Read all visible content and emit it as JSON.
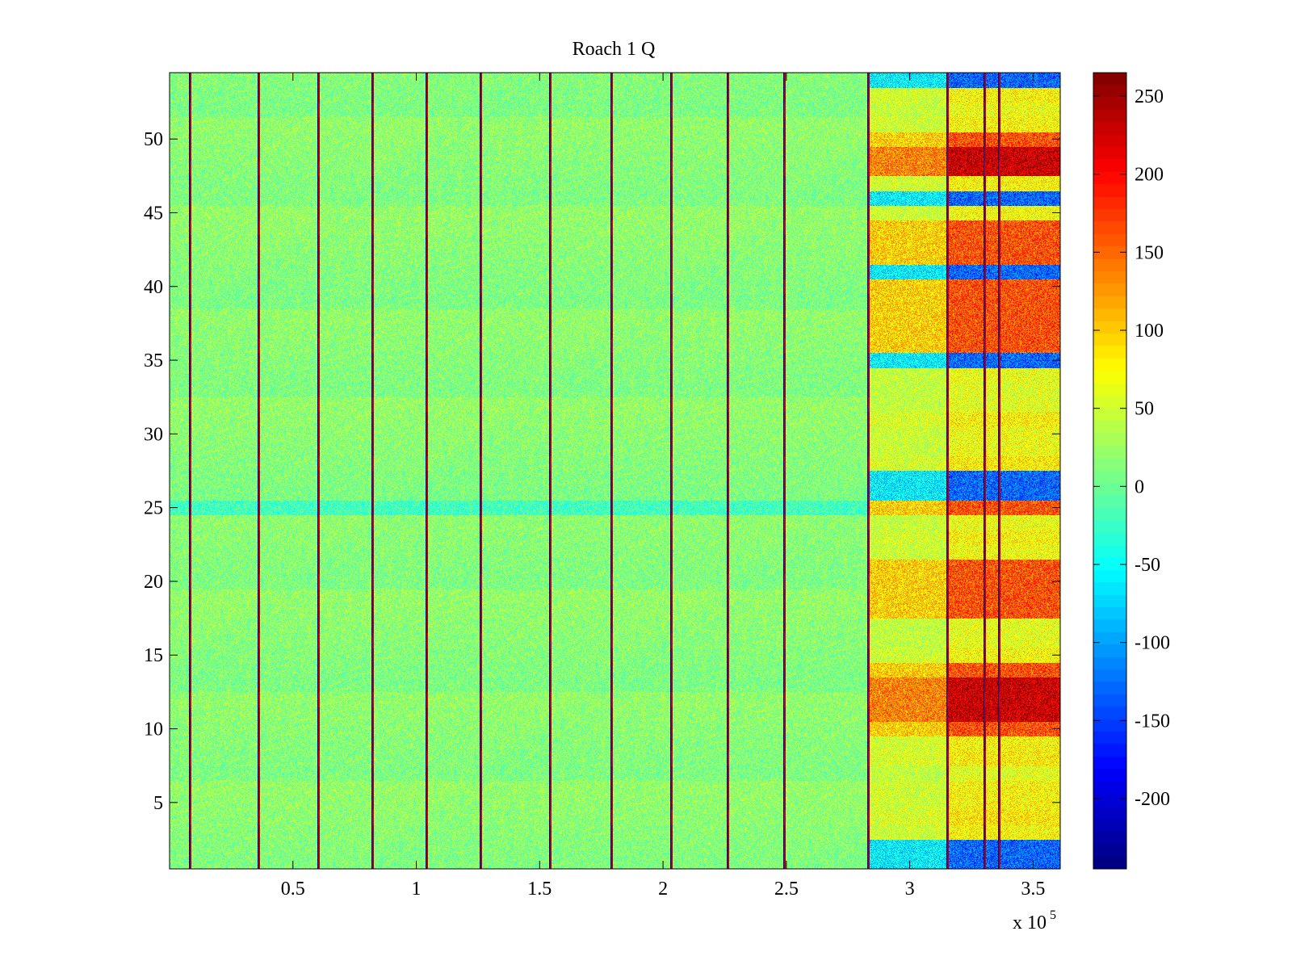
{
  "chart_data": {
    "type": "heatmap",
    "title": "Roach 1 Q",
    "xlabel": "",
    "ylabel": "",
    "x_exponent_label": "x 10",
    "x_exponent": "5",
    "xlim": [
      0,
      3.61
    ],
    "ylim": [
      0.5,
      54.5
    ],
    "x_ticks": [
      0.5,
      1,
      1.5,
      2,
      2.5,
      3,
      3.5
    ],
    "x_tick_labels": [
      "0.5",
      "1",
      "1.5",
      "2",
      "2.5",
      "3",
      "3.5"
    ],
    "y_ticks": [
      5,
      10,
      15,
      20,
      25,
      30,
      35,
      40,
      45,
      50
    ],
    "y_tick_labels": [
      "5",
      "10",
      "15",
      "20",
      "25",
      "30",
      "35",
      "40",
      "45",
      "50"
    ],
    "colormap": "jet",
    "clim": [
      -245,
      265
    ],
    "colorbar_ticks": [
      250,
      200,
      150,
      100,
      50,
      0,
      -50,
      -100,
      -150,
      -200
    ],
    "colorbar_tick_labels": [
      "250",
      "200",
      "150",
      "100",
      "50",
      "0",
      "-50",
      "-100",
      "-150",
      "-200"
    ],
    "rows": 54,
    "baseline_level": 15,
    "noise_amplitude": 40,
    "sweep_boundaries_x1e5": [
      0.08,
      0.36,
      0.6,
      0.82,
      1.04,
      1.26,
      1.54,
      1.79,
      2.03,
      2.26,
      2.49,
      2.83,
      3.15,
      3.3,
      3.36
    ],
    "high_activity_segment_x1e5": [
      2.83,
      3.61
    ],
    "dark_red_rows": [
      11,
      12,
      13,
      48,
      49
    ],
    "red_rows": [
      10,
      14,
      18,
      19,
      20,
      21,
      25,
      36,
      37,
      38,
      39,
      40,
      42,
      43,
      44,
      50
    ],
    "blue_rows": [
      1,
      2,
      25,
      26,
      27,
      35,
      41,
      46,
      54
    ]
  }
}
